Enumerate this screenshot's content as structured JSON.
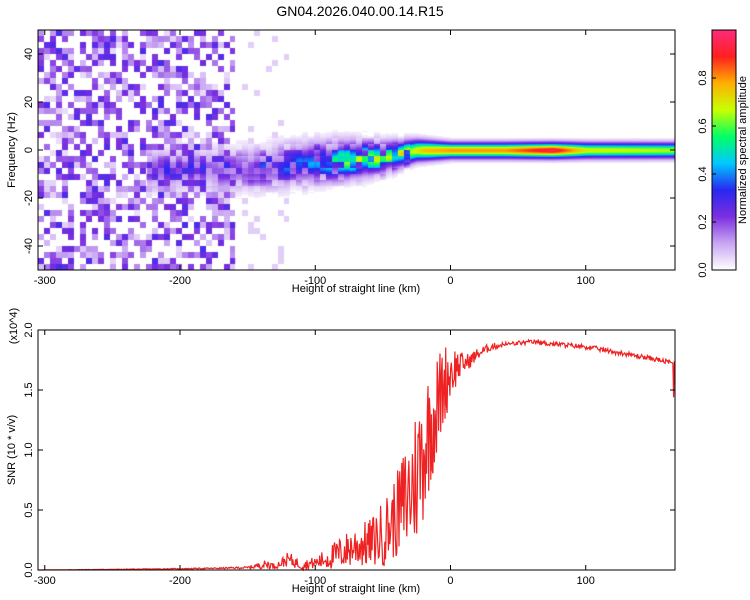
{
  "title": "GN04.2026.040.00.14.R15",
  "chart_data": [
    {
      "type": "heatmap",
      "xlabel": "Height of straight line (km)",
      "ylabel": "Frequency (Hz)",
      "xlim": [
        -305,
        166
      ],
      "ylim": [
        -50,
        50
      ],
      "x_ticks": [
        "-300",
        "-200",
        "-100",
        "0",
        "100"
      ],
      "x_tick_values": [
        -300,
        -200,
        -100,
        0,
        100
      ],
      "y_ticks": [
        "-40",
        "-20",
        "0",
        "20",
        "40"
      ],
      "y_tick_values": [
        -40,
        -20,
        0,
        20,
        40
      ],
      "colorbar": {
        "label": "Normalized spectral amplitude",
        "ticks": [
          "0.0",
          "0.2",
          "0.4",
          "0.6",
          "0.8"
        ],
        "tick_values": [
          0.0,
          0.2,
          0.4,
          0.6,
          0.8
        ],
        "range": [
          0,
          1
        ],
        "colormap": [
          "#ffffff",
          "#c9a6f2",
          "#7b2fe0",
          "#2828f0",
          "#00c8ff",
          "#00ff66",
          "#c8ff00",
          "#ffb000",
          "#ff2020",
          "#ff2a7a"
        ]
      },
      "features": {
        "noise_region_x": [
          -305,
          -160
        ],
        "signal_center_freq_hz": [
          [
            -220,
            -8
          ],
          [
            -150,
            -8
          ],
          [
            -100,
            -5
          ],
          [
            -50,
            -3
          ],
          [
            -25,
            0
          ],
          [
            0,
            0
          ],
          [
            50,
            0
          ],
          [
            100,
            0
          ],
          [
            166,
            0
          ]
        ],
        "signal_halfwidth_hz": [
          [
            -220,
            8
          ],
          [
            -150,
            8
          ],
          [
            -100,
            8
          ],
          [
            -50,
            6
          ],
          [
            -25,
            4
          ],
          [
            0,
            3
          ],
          [
            166,
            3
          ]
        ],
        "peak_amplitude": [
          [
            -150,
            0.25
          ],
          [
            -100,
            0.35
          ],
          [
            -75,
            0.5
          ],
          [
            -40,
            0.55
          ],
          [
            -20,
            0.75
          ],
          [
            0,
            0.8
          ],
          [
            40,
            0.8
          ],
          [
            75,
            0.95
          ],
          [
            100,
            0.7
          ],
          [
            166,
            0.65
          ]
        ]
      }
    },
    {
      "type": "line",
      "xlabel": "Height of straight line (km)",
      "ylabel": "SNR (10 * v/v)",
      "y_multiplier": "(x10^4)",
      "xlim": [
        -305,
        166
      ],
      "ylim": [
        0,
        2.0
      ],
      "x_ticks": [
        "-300",
        "-200",
        "-100",
        "0",
        "100"
      ],
      "x_tick_values": [
        -300,
        -200,
        -100,
        0,
        100
      ],
      "y_ticks": [
        "0.0",
        "0.5",
        "1.0",
        "1.5",
        "2.0"
      ],
      "y_tick_values": [
        0.0,
        0.5,
        1.0,
        1.5,
        2.0
      ],
      "color": "#ee2222",
      "series": [
        {
          "x": [
            -305,
            -250,
            -200,
            -170,
            -150,
            -135,
            -130,
            -120,
            -110,
            -100,
            -90,
            -80,
            -70,
            -60,
            -50,
            -40,
            -35,
            -30,
            -25,
            -20,
            -15,
            -10,
            -5,
            0,
            5,
            10,
            15,
            20,
            25,
            30,
            40,
            50,
            60,
            70,
            80,
            90,
            100,
            110,
            120,
            130,
            140,
            150,
            166
          ],
          "y": [
            0.0,
            0.005,
            0.01,
            0.015,
            0.02,
            0.05,
            0.03,
            0.09,
            0.04,
            0.06,
            0.1,
            0.15,
            0.2,
            0.22,
            0.3,
            0.45,
            0.55,
            0.65,
            0.8,
            1.0,
            1.2,
            1.35,
            1.55,
            1.65,
            1.7,
            1.72,
            1.75,
            1.8,
            1.83,
            1.86,
            1.88,
            1.89,
            1.9,
            1.89,
            1.88,
            1.87,
            1.86,
            1.84,
            1.82,
            1.8,
            1.78,
            1.76,
            1.72
          ],
          "noise": [
            0.0,
            0.002,
            0.004,
            0.005,
            0.01,
            0.04,
            0.02,
            0.06,
            0.04,
            0.05,
            0.1,
            0.14,
            0.18,
            0.2,
            0.28,
            0.35,
            0.45,
            0.55,
            0.6,
            0.6,
            0.5,
            0.45,
            0.35,
            0.25,
            0.15,
            0.08,
            0.06,
            0.05,
            0.04,
            0.03,
            0.02,
            0.02,
            0.02,
            0.02,
            0.02,
            0.02,
            0.02,
            0.02,
            0.02,
            0.02,
            0.02,
            0.02,
            0.02
          ]
        }
      ]
    }
  ]
}
